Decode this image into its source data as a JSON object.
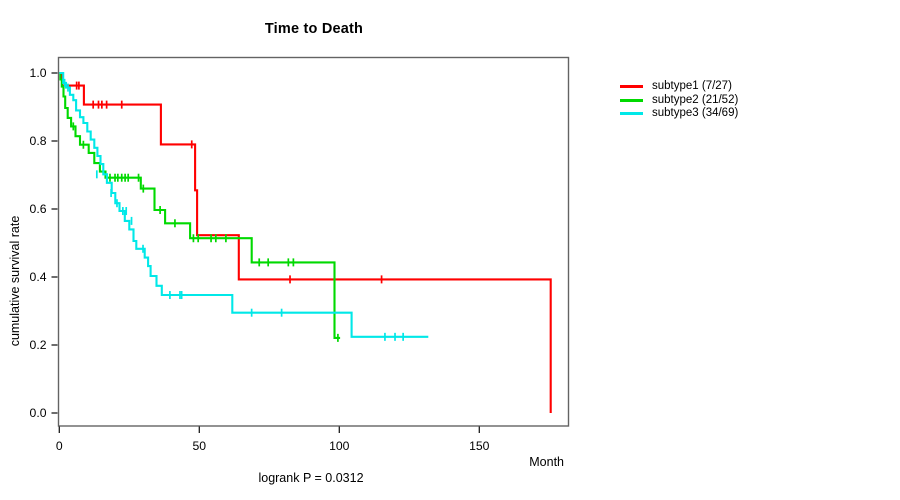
{
  "chart_data": {
    "type": "line",
    "variant": "kaplan-meier-step-survival",
    "title": "Time to Death",
    "xlabel": "Month",
    "ylabel": "cumulative survival rate",
    "annotation": "logrank P = 0.0312",
    "xlim": [
      0,
      182
    ],
    "ylim": [
      0,
      1.0
    ],
    "x_tick_labels": [
      "0",
      "50",
      "100",
      "150"
    ],
    "y_tick_labels": [
      "0.0",
      "0.2",
      "0.4",
      "0.6",
      "0.8",
      "1.0"
    ],
    "grid": false,
    "legend_position": "right-outside",
    "colors": {
      "frame": "#636363",
      "tick": "#1c1c1c",
      "text": "#000000",
      "background": "#ffffff"
    },
    "series": [
      {
        "name": "subtype1",
        "legend_label": "subtype1 (7/27)",
        "events": "7/27",
        "color": "#ff0000",
        "steps": [
          [
            0,
            1.0
          ],
          [
            1.0,
            0.963
          ],
          [
            8.8,
            0.907
          ],
          [
            36.3,
            0.79
          ],
          [
            48.5,
            0.655
          ],
          [
            49.2,
            0.523
          ],
          [
            64.1,
            0.393
          ],
          [
            175.5,
            0.393
          ],
          [
            175.5,
            0.0
          ]
        ],
        "censor_ticks": [
          [
            6.2,
            0.963
          ],
          [
            7.0,
            0.963
          ],
          [
            12.1,
            0.907
          ],
          [
            14.0,
            0.907
          ],
          [
            15.2,
            0.907
          ],
          [
            16.9,
            0.907
          ],
          [
            22.3,
            0.907
          ],
          [
            47.3,
            0.79
          ],
          [
            82.4,
            0.393
          ],
          [
            115.1,
            0.393
          ]
        ]
      },
      {
        "name": "subtype2",
        "legend_label": "subtype2 (21/52)",
        "events": "21/52",
        "color": "#00d900",
        "steps": [
          [
            0,
            1.0
          ],
          [
            0.4,
            0.981
          ],
          [
            0.9,
            0.96
          ],
          [
            1.5,
            0.931
          ],
          [
            2.1,
            0.897
          ],
          [
            3.0,
            0.868
          ],
          [
            4.2,
            0.843
          ],
          [
            5.8,
            0.814
          ],
          [
            7.4,
            0.789
          ],
          [
            10.5,
            0.765
          ],
          [
            12.5,
            0.735
          ],
          [
            14.5,
            0.71
          ],
          [
            16.5,
            0.692
          ],
          [
            29.1,
            0.66
          ],
          [
            34.0,
            0.597
          ],
          [
            37.8,
            0.558
          ],
          [
            46.7,
            0.514
          ],
          [
            68.7,
            0.443
          ],
          [
            98.3,
            0.221
          ],
          [
            100.3,
            0.221
          ]
        ],
        "censor_ticks": [
          [
            5.0,
            0.843
          ],
          [
            8.6,
            0.789
          ],
          [
            18.1,
            0.692
          ],
          [
            19.9,
            0.692
          ],
          [
            20.9,
            0.692
          ],
          [
            22.3,
            0.692
          ],
          [
            23.5,
            0.692
          ],
          [
            24.6,
            0.692
          ],
          [
            28.3,
            0.692
          ],
          [
            30.0,
            0.66
          ],
          [
            36.0,
            0.597
          ],
          [
            41.3,
            0.558
          ],
          [
            47.9,
            0.514
          ],
          [
            49.6,
            0.514
          ],
          [
            54.2,
            0.514
          ],
          [
            55.9,
            0.514
          ],
          [
            59.5,
            0.514
          ],
          [
            71.4,
            0.443
          ],
          [
            74.6,
            0.443
          ],
          [
            81.8,
            0.443
          ],
          [
            83.6,
            0.443
          ],
          [
            99.5,
            0.221
          ]
        ]
      },
      {
        "name": "subtype3",
        "legend_label": "subtype3 (34/69)",
        "events": "34/69",
        "color": "#00e8e8",
        "steps": [
          [
            0,
            1.0
          ],
          [
            1.4,
            0.971
          ],
          [
            2.4,
            0.957
          ],
          [
            3.8,
            0.936
          ],
          [
            5.0,
            0.92
          ],
          [
            6.0,
            0.89
          ],
          [
            7.4,
            0.87
          ],
          [
            8.6,
            0.853
          ],
          [
            10.0,
            0.828
          ],
          [
            11.2,
            0.804
          ],
          [
            12.5,
            0.78
          ],
          [
            13.6,
            0.756
          ],
          [
            14.7,
            0.732
          ],
          [
            15.7,
            0.702
          ],
          [
            17.0,
            0.677
          ],
          [
            18.7,
            0.647
          ],
          [
            20.0,
            0.617
          ],
          [
            21.5,
            0.594
          ],
          [
            23.4,
            0.565
          ],
          [
            25.0,
            0.54
          ],
          [
            26.5,
            0.506
          ],
          [
            27.5,
            0.483
          ],
          [
            30.5,
            0.457
          ],
          [
            31.7,
            0.432
          ],
          [
            32.6,
            0.403
          ],
          [
            34.7,
            0.374
          ],
          [
            36.6,
            0.347
          ],
          [
            61.8,
            0.295
          ],
          [
            104.4,
            0.224
          ],
          [
            131.8,
            0.224
          ]
        ],
        "censor_ticks": [
          [
            1.9,
            0.971
          ],
          [
            3.1,
            0.957
          ],
          [
            13.4,
            0.702
          ],
          [
            18.5,
            0.647
          ],
          [
            20.6,
            0.617
          ],
          [
            22.7,
            0.594
          ],
          [
            23.9,
            0.594
          ],
          [
            25.8,
            0.565
          ],
          [
            29.9,
            0.483
          ],
          [
            39.5,
            0.347
          ],
          [
            43.1,
            0.347
          ],
          [
            43.7,
            0.347
          ],
          [
            68.7,
            0.295
          ],
          [
            79.4,
            0.295
          ],
          [
            116.3,
            0.224
          ],
          [
            119.9,
            0.224
          ],
          [
            122.8,
            0.224
          ]
        ]
      }
    ]
  }
}
